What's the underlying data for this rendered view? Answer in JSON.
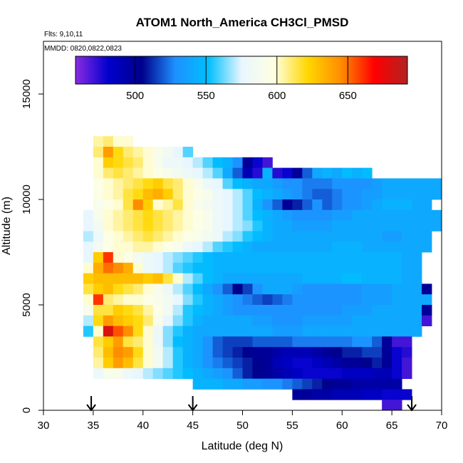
{
  "chart_data": {
    "type": "heatmap",
    "title": "ATOM1 North_America CH3Cl_PMSD",
    "annotations": {
      "flights": "Flts: 9,10,11",
      "dates": "MMDD: 0820,0822,0823"
    },
    "xlabel": "Latitude (deg N)",
    "ylabel": "Altitude (m)",
    "xlim": [
      30,
      70
    ],
    "ylim": [
      0,
      17500
    ],
    "xticks": [
      "30",
      "35",
      "40",
      "45",
      "50",
      "55",
      "60",
      "65",
      "70"
    ],
    "yticks": [
      "0",
      "5000",
      "10000",
      "15000"
    ],
    "colorbar": {
      "range": [
        458,
        692
      ],
      "ticks": [
        "500",
        "550",
        "600",
        "650"
      ],
      "colors": [
        "#8a2be2",
        "#0000cd",
        "#00008b",
        "#1e90ff",
        "#00bfff",
        "#e8f6ff",
        "#ffffe0",
        "#ffd700",
        "#ff8c00",
        "#ff0000",
        "#b22222"
      ]
    },
    "cell": {
      "dlat": 1.0,
      "dalt": 500
    },
    "arrow_latitudes": [
      34.8,
      45.0,
      67.0
    ],
    "rows": [
      {
        "alt": 12750,
        "lat0": 35,
        "vals": [
          605,
          610,
          600,
          600
        ]
      },
      {
        "alt": 12250,
        "lat0": 35,
        "vals": [
          610,
          640,
          620,
          610,
          605,
          600,
          590,
          585,
          575,
          560
        ]
      },
      {
        "alt": 11750,
        "lat0": 35,
        "vals": [
          600,
          625,
          620,
          615,
          610,
          600,
          590,
          580,
          580,
          575,
          570,
          560,
          550,
          545,
          530,
          500,
          480,
          470
        ]
      },
      {
        "alt": 11250,
        "lat0": 35,
        "vals": [
          600,
          610,
          615,
          610,
          605,
          600,
          595,
          590,
          585,
          580,
          575,
          570,
          560,
          540,
          520,
          490,
          475,
          545,
          475,
          480,
          500,
          520,
          540,
          545,
          540,
          550,
          545,
          550
        ]
      },
      {
        "alt": 10750,
        "lat0": 35,
        "vals": [
          595,
          600,
          605,
          610,
          615,
          620,
          625,
          615,
          610,
          600,
          590,
          580,
          575,
          560,
          550,
          545,
          540,
          540,
          535,
          530,
          530,
          525,
          525,
          525,
          530,
          530,
          530,
          530,
          535,
          540,
          540,
          540,
          540,
          540,
          540
        ]
      },
      {
        "alt": 10250,
        "lat0": 35,
        "vals": [
          595,
          600,
          605,
          615,
          620,
          630,
          635,
          625,
          610,
          600,
          595,
          590,
          580,
          575,
          570,
          560,
          550,
          545,
          540,
          535,
          530,
          525,
          520,
          520,
          525,
          530,
          530,
          535,
          535,
          540,
          540,
          540,
          540,
          540,
          540
        ]
      },
      {
        "alt": 9750,
        "lat0": 35,
        "vals": [
          590,
          595,
          600,
          615,
          645,
          625,
          600,
          605,
          615,
          600,
          590,
          585,
          580,
          575,
          570,
          560,
          545,
          530,
          520,
          500,
          510,
          520,
          530,
          520,
          525,
          530,
          530,
          535,
          540,
          545,
          545,
          545,
          540,
          540
        ]
      },
      {
        "alt": 9250,
        "lat0": 34,
        "vals": [
          575,
          590,
          600,
          605,
          610,
          615,
          620,
          615,
          610,
          605,
          600,
          595,
          590,
          580,
          575,
          570,
          560,
          550,
          545,
          540,
          535,
          530,
          530,
          530,
          530,
          535,
          535,
          540,
          540,
          540,
          540,
          540,
          540,
          540,
          540,
          540
        ]
      },
      {
        "alt": 8750,
        "lat0": 34,
        "vals": [
          575,
          585,
          600,
          605,
          610,
          615,
          620,
          615,
          610,
          605,
          600,
          595,
          590,
          580,
          575,
          570,
          565,
          555,
          545,
          540,
          540,
          535,
          535,
          535,
          535,
          540,
          540,
          540,
          540,
          540,
          540,
          540,
          540,
          540,
          540,
          540
        ]
      },
      {
        "alt": 8250,
        "lat0": 34,
        "vals": [
          570,
          580,
          595,
          600,
          605,
          610,
          615,
          610,
          605,
          600,
          595,
          590,
          585,
          580,
          570,
          565,
          555,
          550,
          545,
          540,
          540,
          540,
          540,
          540,
          540,
          540,
          540,
          540,
          540,
          540,
          535,
          535,
          540,
          540,
          540
        ]
      },
      {
        "alt": 7750,
        "lat0": 34,
        "vals": [
          575,
          585,
          595,
          600,
          600,
          605,
          605,
          600,
          595,
          590,
          580,
          575,
          570,
          560,
          555,
          550,
          545,
          540,
          540,
          540,
          540,
          540,
          540,
          540,
          540,
          545,
          545,
          545,
          540,
          540,
          540,
          540,
          540,
          540,
          540
        ]
      },
      {
        "alt": 7250,
        "lat0": 34,
        "vals": [
          575,
          625,
          660,
          600,
          595,
          585,
          580,
          575,
          570,
          565,
          560,
          555,
          550,
          545,
          545,
          545,
          545,
          545,
          545,
          545,
          545,
          545,
          545,
          545,
          545,
          545,
          545,
          545,
          545,
          545,
          545,
          545,
          540,
          540
        ]
      },
      {
        "alt": 6750,
        "lat0": 34,
        "vals": [
          600,
          635,
          650,
          645,
          635,
          600,
          580,
          575,
          570,
          560,
          555,
          550,
          550,
          545,
          545,
          545,
          545,
          545,
          545,
          545,
          545,
          545,
          545,
          545,
          545,
          545,
          545,
          545,
          545,
          545,
          545,
          545,
          540,
          540
        ]
      },
      {
        "alt": 6250,
        "lat0": 34,
        "vals": [
          625,
          630,
          630,
          630,
          630,
          630,
          625,
          630,
          615,
          600,
          570,
          560,
          550,
          545,
          540,
          540,
          540,
          540,
          540,
          540,
          540,
          540,
          545,
          545,
          545,
          545,
          550,
          550,
          545,
          545,
          545,
          545,
          540,
          540
        ]
      },
      {
        "alt": 5750,
        "lat0": 34,
        "vals": [
          615,
          625,
          630,
          620,
          615,
          610,
          600,
          590,
          580,
          570,
          560,
          550,
          540,
          530,
          520,
          505,
          515,
          530,
          540,
          540,
          540,
          535,
          530,
          530,
          530,
          530,
          530,
          530,
          535,
          535,
          535,
          540,
          540,
          540,
          500
        ]
      },
      {
        "alt": 5250,
        "lat0": 34,
        "vals": [
          600,
          660,
          610,
          605,
          600,
          600,
          595,
          590,
          585,
          575,
          565,
          555,
          545,
          540,
          535,
          530,
          525,
          520,
          515,
          520,
          525,
          530,
          530,
          530,
          530,
          530,
          530,
          530,
          535,
          535,
          535,
          540,
          540,
          540,
          540
        ]
      },
      {
        "alt": 4750,
        "lat0": 34,
        "vals": [
          590,
          615,
          615,
          625,
          620,
          615,
          605,
          595,
          585,
          570,
          555,
          550,
          545,
          540,
          535,
          530,
          530,
          530,
          530,
          530,
          530,
          530,
          530,
          530,
          530,
          530,
          535,
          535,
          535,
          540,
          540,
          540,
          540,
          540,
          500
        ]
      },
      {
        "alt": 4250,
        "lat0": 34,
        "vals": [
          570,
          620,
          640,
          630,
          625,
          620,
          610,
          590,
          575,
          565,
          555,
          545,
          540,
          540,
          540,
          540,
          540,
          535,
          535,
          530,
          530,
          530,
          535,
          535,
          535,
          535,
          535,
          540,
          540,
          540,
          540,
          540,
          540,
          540,
          470
        ]
      },
      {
        "alt": 3750,
        "lat0": 34,
        "vals": [
          555,
          600,
          680,
          655,
          645,
          620,
          600,
          580,
          565,
          555,
          545,
          540,
          540,
          540,
          540,
          540,
          540,
          540,
          540,
          535,
          535,
          535,
          540,
          540,
          540,
          540,
          540,
          540,
          540,
          540,
          540,
          540,
          540,
          540
        ]
      },
      {
        "alt": 3250,
        "lat0": 35,
        "vals": [
          615,
          625,
          640,
          615,
          610,
          600,
          580,
          565,
          550,
          545,
          540,
          530,
          520,
          515,
          515,
          515,
          520,
          520,
          520,
          520,
          525,
          525,
          525,
          525,
          525,
          525,
          530,
          530,
          520,
          500,
          470,
          470
        ]
      },
      {
        "alt": 2750,
        "lat0": 35,
        "vals": [
          610,
          630,
          645,
          640,
          620,
          600,
          585,
          570,
          555,
          545,
          540,
          530,
          520,
          515,
          510,
          505,
          500,
          500,
          495,
          490,
          490,
          490,
          495,
          500,
          505,
          510,
          510,
          515,
          515,
          500,
          480,
          475
        ]
      },
      {
        "alt": 2250,
        "lat0": 35,
        "vals": [
          605,
          625,
          640,
          630,
          615,
          600,
          585,
          570,
          555,
          545,
          540,
          530,
          525,
          520,
          515,
          510,
          505,
          500,
          490,
          485,
          480,
          480,
          485,
          490,
          495,
          500,
          500,
          505,
          510,
          500,
          480,
          470
        ]
      },
      {
        "alt": 1750,
        "lat0": 35,
        "vals": [
          580,
          590,
          590,
          580,
          575,
          570,
          565,
          560,
          555,
          550,
          545,
          540,
          535,
          530,
          520,
          510,
          505,
          500,
          495,
          490,
          485,
          480,
          480,
          480,
          480,
          485,
          485,
          485,
          490,
          490,
          480,
          470
        ]
      },
      {
        "alt": 1250,
        "lat0": 45,
        "vals": [
          545,
          545,
          545,
          540,
          540,
          535,
          535,
          530,
          530,
          525,
          520,
          515,
          510,
          505,
          500,
          500,
          495,
          495,
          495,
          495,
          495
        ]
      },
      {
        "alt": 750,
        "lat0": 55,
        "vals": [
          500,
          500,
          495,
          495,
          490,
          490,
          490,
          485,
          485,
          480,
          480,
          480
        ]
      },
      {
        "alt": 250,
        "lat0": 64,
        "vals": [
          470,
          470
        ]
      }
    ]
  }
}
